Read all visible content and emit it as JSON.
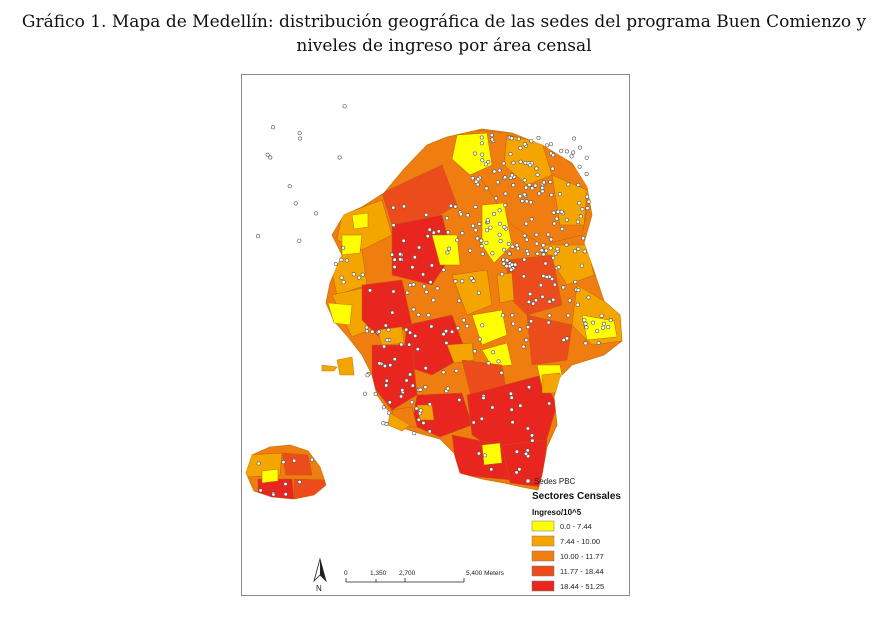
{
  "figure": {
    "title_line1": "Gráfico 1. Mapa de Medellín: distribución geográfica de las sedes del programa Buen Comienzo y",
    "title_line2": "niveles de ingreso por área censal"
  },
  "legend": {
    "points_label": "Sedes PBC",
    "layer_title": "Sectores Censales",
    "field_title": "Ingreso/10^5",
    "classes": [
      {
        "label": "0.0 - 7.44",
        "color": "#ffff00"
      },
      {
        "label": "7.44 - 10.00",
        "color": "#f5a500"
      },
      {
        "label": "10.00 - 11.77",
        "color": "#f07d10"
      },
      {
        "label": "11.77 - 18.44",
        "color": "#ec4b1c"
      },
      {
        "label": "18.44 - 51.25",
        "color": "#e8251f"
      }
    ]
  },
  "scale_bar": {
    "labels": [
      "0",
      "1,350",
      "2,700",
      "5,400 Meters"
    ]
  },
  "north_arrow": {
    "label": "N"
  },
  "colors": {
    "frame": "#8a8a8a",
    "boundary": "#c87a10",
    "point_fill": "#ffffff",
    "point_stroke": "#555555"
  }
}
